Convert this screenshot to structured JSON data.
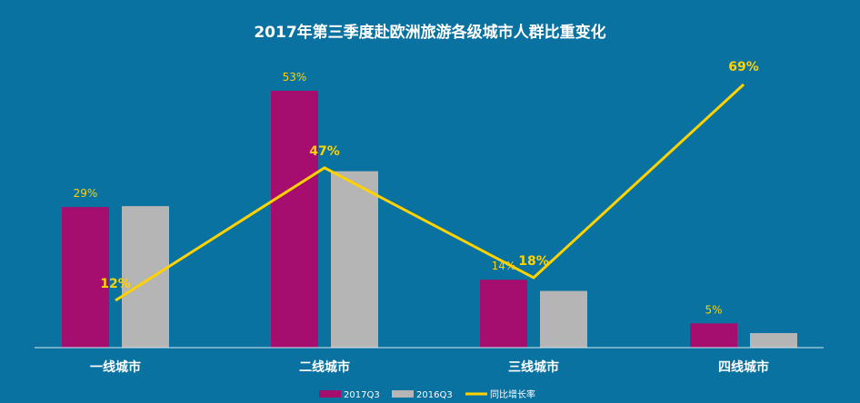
{
  "chart_data": {
    "type": "bar",
    "title": "2017年第三季度赴欧洲旅游各级城市人群比重变化",
    "categories": [
      "一线城市",
      "二线城市",
      "三线城市",
      "四线城市"
    ],
    "series": [
      {
        "name": "2017Q3",
        "kind": "bar",
        "values": [
          29,
          53,
          14,
          5
        ],
        "labels": [
          "29%",
          "53%",
          "14%",
          "5%"
        ],
        "color": "#a50d6e"
      },
      {
        "name": "2016Q3",
        "kind": "bar",
        "values": [
          29.2,
          36.4,
          11.7,
          3
        ],
        "color": "#b5b5b5"
      },
      {
        "name": "同比增长率",
        "kind": "line",
        "values": [
          12,
          47,
          18,
          69
        ],
        "labels": [
          "12%",
          "47%",
          "18%",
          "69%"
        ],
        "color": "#ffd200"
      }
    ],
    "ylim_bars": [
      0,
      53
    ],
    "ylim_rate": [
      0,
      69
    ],
    "grid": false,
    "legend": "bottom"
  },
  "colors": {
    "background": "#0a72a0",
    "axis": "#d9e6ee"
  }
}
